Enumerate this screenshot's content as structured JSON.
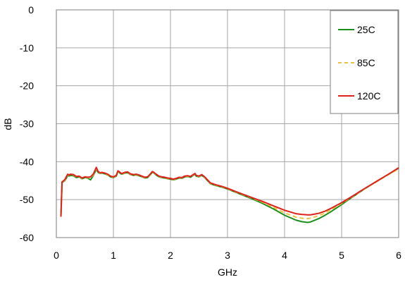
{
  "chart_data": {
    "type": "line",
    "title": "",
    "xlabel": "GHz",
    "ylabel": "dB",
    "xlim": [
      0,
      6
    ],
    "ylim": [
      -60,
      0
    ],
    "xticks": [
      "0",
      "1",
      "2",
      "3",
      "4",
      "5",
      "6"
    ],
    "yticks": [
      "0",
      "-10",
      "-20",
      "-30",
      "-40",
      "-50",
      "-60"
    ],
    "grid": true,
    "legend_position": "top-right",
    "series": [
      {
        "name": "25C",
        "color": "#1a8f1a",
        "dash": "solid",
        "x": [
          0.08,
          0.1,
          0.12,
          0.15,
          0.18,
          0.2,
          0.22,
          0.25,
          0.3,
          0.35,
          0.4,
          0.45,
          0.5,
          0.55,
          0.6,
          0.65,
          0.7,
          0.73,
          0.75,
          0.78,
          0.8,
          0.85,
          0.9,
          0.95,
          1.0,
          1.05,
          1.08,
          1.1,
          1.13,
          1.15,
          1.2,
          1.25,
          1.3,
          1.35,
          1.4,
          1.45,
          1.5,
          1.55,
          1.6,
          1.65,
          1.68,
          1.7,
          1.75,
          1.8,
          1.85,
          1.9,
          1.95,
          2.0,
          2.05,
          2.1,
          2.15,
          2.2,
          2.25,
          2.3,
          2.35,
          2.4,
          2.43,
          2.45,
          2.5,
          2.55,
          2.6,
          2.65,
          2.7,
          2.8,
          2.9,
          3.0,
          3.2,
          3.4,
          3.6,
          3.8,
          4.0,
          4.2,
          4.3,
          4.4,
          4.45,
          4.5,
          4.6,
          4.7,
          4.8,
          5.0,
          5.2,
          5.4,
          5.6,
          5.8,
          6.0
        ],
        "y": [
          -54.5,
          -45.5,
          -45.3,
          -45.0,
          -44.2,
          -43.6,
          -43.8,
          -43.6,
          -43.7,
          -44.2,
          -44.0,
          -44.5,
          -44.2,
          -44.3,
          -44.8,
          -43.6,
          -42.0,
          -42.8,
          -43.0,
          -43.1,
          -43.0,
          -43.2,
          -43.5,
          -44.0,
          -44.2,
          -43.8,
          -42.6,
          -42.8,
          -43.2,
          -43.3,
          -43.0,
          -42.9,
          -43.4,
          -43.6,
          -43.5,
          -43.7,
          -44.0,
          -44.3,
          -44.2,
          -43.4,
          -42.8,
          -42.9,
          -43.5,
          -44.0,
          -44.2,
          -44.3,
          -44.5,
          -44.6,
          -44.8,
          -44.6,
          -44.3,
          -44.4,
          -44.0,
          -43.9,
          -44.1,
          -43.6,
          -43.3,
          -43.8,
          -44.0,
          -43.6,
          -44.2,
          -45.0,
          -45.8,
          -46.3,
          -46.7,
          -47.2,
          -48.4,
          -49.6,
          -50.9,
          -52.4,
          -54.1,
          -55.4,
          -55.8,
          -56.0,
          -55.9,
          -55.6,
          -55.0,
          -54.2,
          -53.3,
          -51.3,
          -49.2,
          -47.2,
          -45.3,
          -43.5,
          -41.7
        ]
      },
      {
        "name": "85C",
        "color": "#f0c040",
        "dash": "dashed",
        "x": [
          0.08,
          0.1,
          0.12,
          0.15,
          0.18,
          0.2,
          0.22,
          0.25,
          0.3,
          0.35,
          0.4,
          0.45,
          0.5,
          0.55,
          0.6,
          0.65,
          0.7,
          0.73,
          0.75,
          0.78,
          0.8,
          0.85,
          0.9,
          0.95,
          1.0,
          1.05,
          1.08,
          1.1,
          1.13,
          1.15,
          1.2,
          1.25,
          1.3,
          1.35,
          1.4,
          1.45,
          1.5,
          1.55,
          1.6,
          1.65,
          1.68,
          1.7,
          1.75,
          1.8,
          1.85,
          1.9,
          1.95,
          2.0,
          2.05,
          2.1,
          2.15,
          2.2,
          2.25,
          2.3,
          2.35,
          2.4,
          2.43,
          2.45,
          2.5,
          2.55,
          2.6,
          2.65,
          2.7,
          2.8,
          2.9,
          3.0,
          3.2,
          3.4,
          3.6,
          3.8,
          4.0,
          4.2,
          4.3,
          4.4,
          4.45,
          4.5,
          4.6,
          4.7,
          4.8,
          5.0,
          5.2,
          5.4,
          5.6,
          5.8,
          6.0
        ],
        "y": [
          -54.5,
          -45.4,
          -45.2,
          -44.9,
          -44.0,
          -43.4,
          -43.6,
          -43.4,
          -43.5,
          -44.0,
          -43.9,
          -44.4,
          -44.1,
          -44.2,
          -44.2,
          -43.4,
          -41.8,
          -42.6,
          -42.9,
          -43.0,
          -42.9,
          -43.1,
          -43.4,
          -43.9,
          -44.1,
          -43.7,
          -42.5,
          -42.7,
          -43.1,
          -43.2,
          -42.9,
          -42.8,
          -43.3,
          -43.5,
          -43.4,
          -43.6,
          -43.9,
          -44.2,
          -44.1,
          -43.3,
          -42.7,
          -42.8,
          -43.4,
          -43.9,
          -44.1,
          -44.2,
          -44.4,
          -44.5,
          -44.7,
          -44.5,
          -44.2,
          -44.3,
          -43.9,
          -43.8,
          -44.0,
          -43.5,
          -43.2,
          -43.7,
          -43.9,
          -43.5,
          -44.1,
          -44.9,
          -45.7,
          -46.2,
          -46.6,
          -47.1,
          -48.3,
          -49.4,
          -50.6,
          -52.0,
          -53.5,
          -54.6,
          -54.9,
          -55.0,
          -54.9,
          -54.7,
          -54.2,
          -53.6,
          -52.8,
          -51.0,
          -49.1,
          -47.2,
          -45.4,
          -43.6,
          -41.9
        ]
      },
      {
        "name": "120C",
        "color": "#e0201a",
        "dash": "solid",
        "x": [
          0.08,
          0.1,
          0.12,
          0.15,
          0.18,
          0.2,
          0.22,
          0.25,
          0.3,
          0.35,
          0.4,
          0.45,
          0.5,
          0.55,
          0.6,
          0.65,
          0.7,
          0.73,
          0.75,
          0.78,
          0.8,
          0.85,
          0.9,
          0.95,
          1.0,
          1.05,
          1.08,
          1.1,
          1.13,
          1.15,
          1.2,
          1.25,
          1.3,
          1.35,
          1.4,
          1.45,
          1.5,
          1.55,
          1.6,
          1.65,
          1.68,
          1.7,
          1.75,
          1.8,
          1.85,
          1.9,
          1.95,
          2.0,
          2.05,
          2.1,
          2.15,
          2.2,
          2.25,
          2.3,
          2.35,
          2.4,
          2.43,
          2.45,
          2.5,
          2.55,
          2.6,
          2.65,
          2.7,
          2.8,
          2.9,
          3.0,
          3.2,
          3.4,
          3.6,
          3.8,
          4.0,
          4.2,
          4.3,
          4.4,
          4.45,
          4.5,
          4.6,
          4.7,
          4.8,
          5.0,
          5.2,
          5.4,
          5.6,
          5.8,
          6.0
        ],
        "y": [
          -54.5,
          -45.3,
          -45.1,
          -44.7,
          -43.8,
          -43.3,
          -43.5,
          -43.3,
          -43.4,
          -43.9,
          -43.8,
          -44.3,
          -44.0,
          -44.1,
          -44.0,
          -43.2,
          -41.5,
          -42.5,
          -42.8,
          -42.9,
          -42.8,
          -43.0,
          -43.3,
          -43.8,
          -44.0,
          -43.6,
          -42.4,
          -42.6,
          -43.0,
          -43.1,
          -42.8,
          -42.7,
          -43.2,
          -43.4,
          -43.3,
          -43.5,
          -43.8,
          -44.1,
          -44.0,
          -43.2,
          -42.6,
          -42.7,
          -43.3,
          -43.8,
          -44.0,
          -44.1,
          -44.3,
          -44.4,
          -44.6,
          -44.4,
          -44.1,
          -44.2,
          -43.8,
          -43.7,
          -43.9,
          -43.4,
          -43.1,
          -43.6,
          -43.8,
          -43.4,
          -44.0,
          -44.8,
          -45.6,
          -46.1,
          -46.5,
          -47.0,
          -48.2,
          -49.3,
          -50.4,
          -51.6,
          -52.8,
          -53.7,
          -53.9,
          -54.0,
          -54.0,
          -53.9,
          -53.6,
          -53.1,
          -52.4,
          -50.8,
          -49.0,
          -47.1,
          -45.3,
          -43.5,
          -41.6
        ]
      }
    ]
  }
}
